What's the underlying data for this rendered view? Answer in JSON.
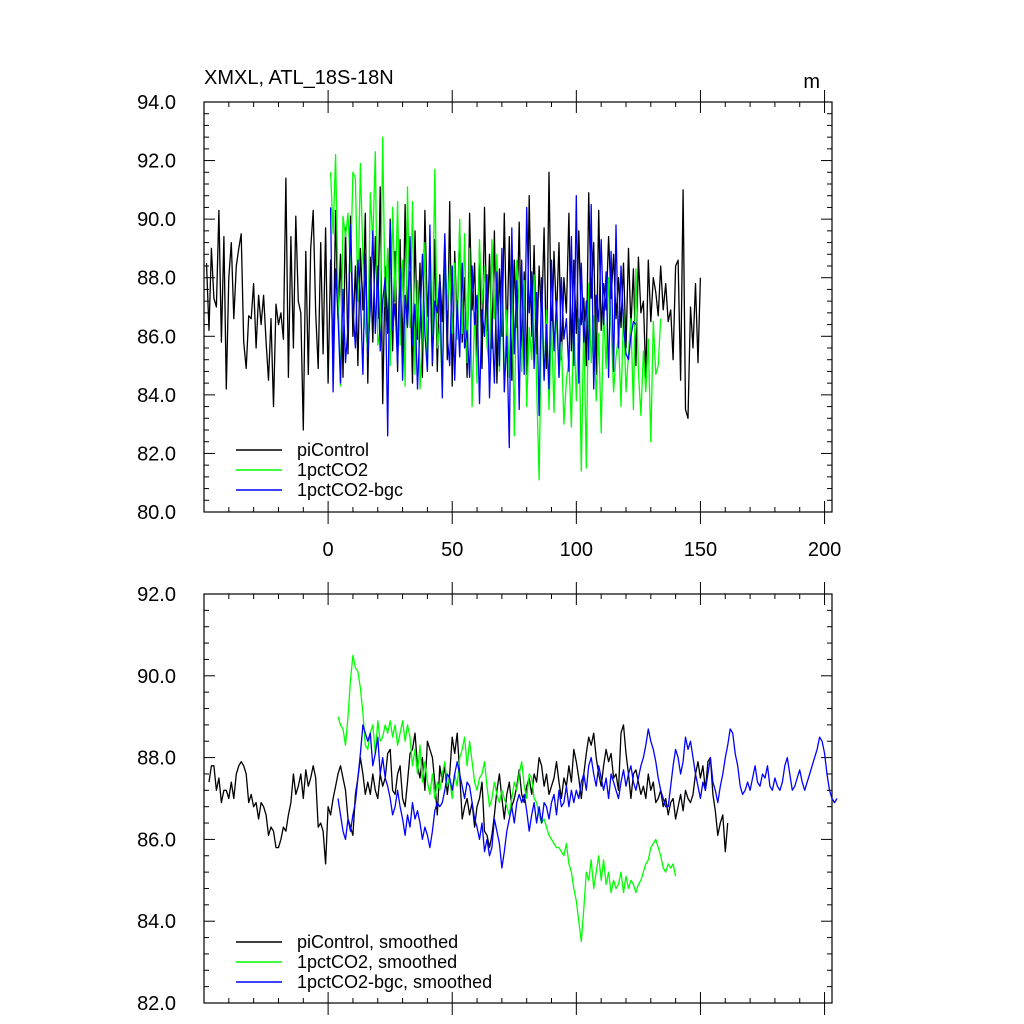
{
  "chart_data": [
    {
      "type": "line",
      "title_left": "XMXL, ATL_18S-18N",
      "title_right": "m",
      "xlim": [
        -50,
        203
      ],
      "ylim": [
        80,
        94
      ],
      "yticks": [
        80.0,
        82.0,
        84.0,
        86.0,
        88.0,
        90.0,
        92.0,
        94.0
      ],
      "xticks": [
        0,
        50,
        100,
        150,
        200
      ],
      "show_x_tick_labels": true,
      "legend_position": "lower-left",
      "series": [
        {
          "name": "piControl",
          "color": "#000000",
          "x_start": -49,
          "values": [
            88.5,
            86.2,
            89.0,
            87.3,
            87.0,
            90.3,
            85.8,
            89.4,
            84.2,
            88.0,
            89.2,
            86.6,
            88.4,
            89.0,
            89.5,
            85.8,
            84.9,
            86.7,
            86.6,
            87.8,
            85.6,
            87.4,
            86.4,
            87.4,
            85.8,
            84.5,
            86.6,
            83.6,
            87.1,
            86.4,
            86.8,
            85.9,
            91.4,
            84.6,
            89.4,
            85.6,
            90.1,
            87.2,
            86.8,
            82.8,
            88.9,
            84.7,
            89.0,
            90.3,
            86.8,
            84.9,
            89.2,
            85.4,
            89.7,
            84.4,
            88.6,
            85.1,
            90.3,
            86.6,
            88.8,
            84.6,
            89.7,
            85.4,
            90.1,
            86.0,
            88.4,
            85.0,
            89.0,
            86.9,
            90.2,
            84.4,
            88.7,
            85.8,
            89.4,
            86.6,
            91.1,
            83.7,
            88.4,
            86.1,
            90.0,
            85.5,
            88.9,
            84.8,
            89.3,
            85.3,
            90.5,
            86.4,
            88.2,
            84.4,
            89.6,
            85.9,
            88.5,
            84.6,
            90.3,
            86.7,
            88.4,
            85.0,
            89.3,
            84.8,
            88.1,
            86.5,
            89.4,
            85.2,
            90.6,
            84.3,
            88.9,
            86.4,
            89.7,
            85.8,
            88.0,
            84.6,
            90.2,
            86.9,
            88.5,
            85.1,
            89.0,
            84.9,
            90.4,
            86.2,
            88.8,
            85.6,
            89.6,
            84.4,
            88.3,
            86.0,
            90.2,
            85.7,
            89.4,
            84.5,
            88.6,
            86.3,
            89.9,
            85.3,
            88.2,
            84.7,
            90.8,
            86.0,
            89.1,
            85.4,
            88.4,
            86.5,
            89.7,
            84.9,
            91.6,
            85.8,
            88.9,
            86.6,
            89.2,
            85.2,
            88.0,
            86.8,
            90.2,
            85.5,
            88.6,
            86.1,
            89.6,
            86.4,
            87.3,
            85.0,
            90.9,
            87.3,
            89.2,
            84.7,
            90.3,
            86.2,
            87.8,
            86.9,
            89.4,
            87.3,
            88.8,
            86.6,
            88.0,
            86.3,
            88.5,
            85.6,
            89.0,
            86.3,
            88.3,
            85.0,
            88.7,
            86.8,
            87.2,
            84.6,
            88.6,
            86.5,
            88.0,
            87.5,
            86.7,
            88.4,
            86.9,
            87.8,
            86.5,
            86.9,
            85.2,
            88.4,
            88.6,
            84.5,
            91.0,
            83.5,
            83.2,
            87.0,
            85.6,
            87.8,
            85.1,
            88.0
          ]
        },
        {
          "name": "1pctCO2",
          "color": "#00ff00",
          "x_start": 1,
          "values": [
            91.6,
            89.5,
            92.2,
            87.6,
            84.3,
            90.1,
            89.4,
            90.2,
            88.2,
            91.6,
            91.4,
            87.2,
            91.9,
            88.7,
            86.3,
            85.5,
            90.9,
            89.2,
            92.3,
            85.7,
            86.2,
            92.8,
            87.0,
            89.0,
            85.0,
            90.4,
            87.2,
            90.6,
            85.7,
            88.6,
            84.3,
            91.1,
            86.3,
            90.6,
            84.7,
            87.9,
            84.2,
            86.2,
            89.2,
            84.9,
            88.4,
            86.0,
            91.7,
            85.6,
            86.4,
            84.2,
            89.0,
            86.9,
            88.4,
            86.1,
            88.5,
            85.9,
            90.0,
            86.1,
            89.5,
            85.1,
            89.0,
            83.6,
            86.8,
            84.4,
            89.3,
            87.1,
            88.4,
            85.7,
            84.9,
            89.3,
            86.6,
            88.8,
            84.8,
            87.7,
            84.1,
            86.9,
            84.6,
            87.9,
            82.6,
            88.6,
            87.0,
            84.8,
            87.9,
            83.6,
            86.3,
            85.2,
            88.1,
            84.4,
            81.1,
            86.8,
            84.5,
            86.9,
            83.5,
            86.5,
            83.4,
            87.2,
            84.6,
            85.8,
            83.0,
            84.5,
            85.2,
            82.9,
            86.8,
            83.8,
            86.6,
            81.4,
            86.5,
            81.5,
            87.8,
            85.1,
            86.7,
            83.8,
            86.1,
            82.7,
            86.9,
            84.9,
            88.0,
            86.4,
            84.1,
            85.3,
            86.0,
            83.6,
            86.9,
            84.1,
            85.4,
            86.6,
            83.5,
            88.3,
            84.8,
            83.3,
            85.5,
            84.1,
            85.9,
            82.4,
            86.5,
            84.7,
            85.0,
            86.6
          ]
        },
        {
          "name": "1pctCO2-bgc",
          "color": "#0000ff",
          "x_start": 1,
          "values": [
            90.4,
            84.1,
            88.3,
            86.7,
            84.4,
            87.6,
            85.1,
            86.3,
            89.8,
            87.0,
            85.6,
            88.6,
            87.4,
            84.7,
            88.8,
            85.3,
            87.0,
            89.6,
            86.1,
            88.4,
            85.5,
            87.2,
            88.0,
            82.6,
            89.9,
            86.2,
            87.1,
            85.0,
            88.3,
            84.5,
            87.4,
            86.3,
            89.4,
            85.7,
            87.1,
            84.2,
            86.4,
            88.8,
            86.1,
            84.8,
            89.8,
            85.1,
            87.2,
            86.8,
            88.0,
            83.9,
            89.5,
            86.0,
            85.0,
            88.4,
            84.5,
            87.2,
            85.3,
            88.5,
            85.6,
            86.2,
            84.6,
            88.4,
            86.4,
            87.4,
            83.7,
            86.9,
            86.0,
            88.1,
            83.9,
            86.6,
            84.4,
            88.2,
            85.0,
            89.0,
            84.1,
            86.0,
            82.2,
            89.7,
            85.4,
            87.9,
            83.5,
            88.6,
            84.7,
            90.4,
            86.8,
            88.2,
            84.9,
            87.5,
            83.3,
            88.0,
            84.5,
            86.4,
            84.2,
            88.6,
            85.5,
            87.2,
            84.6,
            88.0,
            85.9,
            86.6,
            84.8,
            89.4,
            85.0,
            90.8,
            84.4,
            88.5,
            85.8,
            87.2,
            85.2,
            90.5,
            84.2,
            87.4,
            86.5,
            89.3,
            86.4,
            88.2,
            84.6,
            88.9,
            84.8,
            89.8,
            85.6,
            88.4,
            86.4,
            85.4,
            85.2,
            86.0,
            86.5,
            86.4
          ]
        }
      ]
    },
    {
      "type": "line",
      "xlim": [
        -50,
        203
      ],
      "ylim": [
        82,
        92
      ],
      "yticks": [
        82.0,
        84.0,
        86.0,
        88.0,
        90.0,
        92.0
      ],
      "xticks": [
        0,
        50,
        100,
        150,
        200
      ],
      "show_x_tick_labels": false,
      "legend_position": "lower-left",
      "series": [
        {
          "name": "piControl, smoothed",
          "color": "#000000",
          "x_start": -48,
          "values": [
            87.4,
            87.8,
            87.8,
            87.2,
            87.5,
            86.9,
            87.2,
            87.2,
            87.0,
            87.4,
            87.0,
            87.6,
            87.8,
            87.9,
            87.8,
            87.6,
            86.9,
            87.1,
            86.8,
            86.9,
            86.5,
            86.9,
            86.8,
            86.6,
            86.1,
            86.3,
            86.2,
            85.8,
            85.8,
            86.0,
            86.3,
            86.2,
            86.6,
            86.9,
            87.6,
            87.1,
            87.3,
            87.6,
            87.0,
            87.7,
            87.3,
            87.5,
            87.8,
            87.5,
            86.3,
            86.4,
            86.2,
            85.4,
            86.8,
            86.6,
            87.0,
            87.3,
            87.6,
            87.8,
            87.5,
            87.2,
            86.5,
            86.3,
            86.1,
            87.1,
            87.5,
            88.0,
            87.6,
            87.1,
            87.4,
            87.1,
            87.6,
            87.2,
            87.0,
            87.6,
            87.3,
            87.5,
            88.1,
            88.2,
            87.2,
            87.1,
            87.6,
            87.8,
            87.0,
            86.8,
            87.4,
            88.1,
            88.2,
            88.6,
            87.8,
            87.5,
            88.0,
            87.2,
            88.4,
            88.2,
            88.0,
            87.4,
            86.6,
            87.8,
            87.4,
            87.8,
            87.1,
            87.6,
            88.5,
            88.1,
            88.6,
            87.6,
            86.5,
            86.8,
            87.0,
            86.6,
            86.9,
            86.3,
            86.8,
            87.0,
            87.4,
            86.2,
            86.1,
            85.8,
            86.1,
            86.6,
            87.2,
            87.6,
            87.0,
            86.5,
            87.1,
            87.4,
            86.8,
            87.0,
            87.3,
            87.7,
            87.1,
            86.9,
            87.3,
            87.5,
            87.1,
            87.6,
            87.4,
            88.0,
            87.8,
            87.3,
            87.6,
            87.1,
            87.3,
            87.5,
            87.9,
            87.4,
            87.0,
            87.5,
            87.3,
            87.8,
            87.4,
            88.2,
            87.9,
            87.5,
            87.0,
            87.6,
            88.1,
            88.5,
            88.3,
            88.6,
            88.0,
            87.6,
            87.3,
            87.8,
            88.2,
            87.9,
            88.1,
            87.5,
            87.6,
            87.2,
            88.6,
            88.8,
            88.1,
            87.6,
            87.0,
            87.6,
            87.7,
            87.4,
            87.1,
            87.3,
            87.0,
            87.6,
            87.2,
            87.4,
            86.9,
            87.0,
            87.2,
            86.8,
            87.0,
            86.6,
            86.9,
            87.0,
            86.5,
            86.8,
            87.1,
            86.7,
            87.2,
            87.0,
            86.9,
            87.1,
            87.6,
            87.9,
            87.5,
            87.8,
            87.2,
            87.9,
            88.0,
            87.1,
            86.7,
            86.1,
            86.4,
            86.6,
            85.7,
            86.4
          ]
        },
        {
          "name": "1pctCO2, smoothed",
          "color": "#00ff00",
          "x_start": 4,
          "values": [
            89.0,
            88.8,
            88.7,
            88.3,
            89.0,
            89.9,
            90.5,
            90.2,
            90.1,
            89.7,
            89.1,
            88.3,
            88.2,
            88.6,
            88.8,
            88.1,
            88.9,
            88.4,
            88.5,
            88.8,
            88.6,
            88.9,
            88.5,
            88.8,
            88.3,
            88.6,
            88.9,
            88.4,
            88.8,
            88.5,
            87.8,
            88.2,
            87.6,
            88.3,
            87.4,
            87.9,
            87.4,
            87.1,
            87.6,
            87.0,
            87.4,
            87.2,
            87.6,
            87.9,
            87.3,
            87.5,
            87.0,
            87.6,
            87.3,
            88.0,
            88.2,
            88.5,
            87.8,
            88.4,
            87.9,
            87.4,
            87.2,
            87.5,
            87.6,
            87.9,
            87.3,
            86.8,
            87.0,
            87.4,
            87.1,
            86.9,
            87.2,
            87.0,
            86.8,
            86.6,
            87.0,
            87.4,
            87.2,
            87.6,
            87.9,
            87.3,
            87.0,
            87.6,
            87.5,
            87.0,
            86.9,
            86.6,
            86.4,
            86.5,
            86.3,
            86.1,
            86.0,
            85.9,
            85.8,
            85.8,
            85.7,
            85.6,
            85.9,
            85.4,
            85.2,
            84.8,
            84.5,
            84.0,
            83.5,
            84.3,
            85.2,
            85.0,
            85.5,
            84.8,
            85.2,
            85.6,
            85.0,
            85.5,
            84.9,
            85.2,
            84.7,
            85.0,
            84.8,
            84.9,
            85.2,
            84.7,
            85.1,
            84.8,
            85.0,
            84.9,
            84.7,
            84.9,
            85.0,
            85.2,
            85.4,
            85.5,
            85.8,
            85.9,
            86.0,
            85.8,
            85.6,
            85.3,
            85.2,
            85.4,
            85.3,
            85.4,
            85.1
          ]
        },
        {
          "name": "1pctCO2-bgc, smoothed",
          "color": "#0000ff",
          "x_start": 4,
          "values": [
            87.0,
            86.6,
            86.2,
            86.0,
            86.5,
            86.2,
            86.6,
            86.9,
            87.5,
            88.1,
            88.8,
            88.6,
            88.4,
            88.6,
            87.8,
            88.1,
            88.5,
            87.6,
            88.0,
            87.5,
            87.3,
            87.0,
            86.6,
            86.8,
            87.2,
            86.8,
            86.5,
            86.1,
            86.6,
            86.3,
            86.9,
            86.5,
            86.7,
            86.4,
            86.0,
            86.3,
            86.1,
            85.8,
            86.2,
            86.7,
            86.9,
            86.8,
            86.9,
            87.2,
            87.6,
            87.5,
            87.2,
            87.6,
            87.9,
            87.6,
            87.3,
            87.0,
            87.4,
            87.3,
            86.9,
            86.5,
            86.3,
            86.0,
            86.4,
            85.7,
            86.0,
            85.6,
            85.8,
            86.5,
            86.2,
            85.9,
            85.3,
            85.7,
            86.2,
            86.5,
            86.8,
            86.4,
            86.9,
            87.1,
            86.9,
            87.1,
            86.7,
            86.2,
            86.6,
            86.9,
            86.4,
            86.8,
            86.4,
            86.9,
            86.8,
            86.5,
            86.9,
            87.1,
            86.6,
            87.2,
            86.8,
            86.9,
            87.3,
            86.8,
            87.2,
            86.9,
            87.2,
            87.0,
            87.4,
            87.6,
            87.2,
            87.8,
            88.0,
            87.6,
            87.3,
            87.8,
            87.5,
            87.2,
            87.5,
            87.0,
            87.6,
            87.4,
            87.2,
            87.0,
            87.4,
            87.7,
            87.3,
            87.6,
            87.8,
            87.4,
            87.2,
            87.5,
            87.8,
            88.0,
            88.3,
            88.7,
            88.4,
            88.2,
            87.9,
            87.5,
            87.2,
            87.0,
            86.8,
            86.8,
            87.3,
            87.8,
            88.2,
            88.0,
            87.6,
            87.9,
            88.5,
            88.2,
            88.4,
            88.0,
            87.6,
            87.3,
            87.0,
            87.4,
            87.2,
            87.6,
            88.0,
            87.4,
            87.2,
            86.9,
            87.3,
            87.6,
            88.0,
            88.3,
            88.7,
            88.6,
            88.1,
            87.8,
            87.3,
            87.1,
            87.2,
            87.4,
            87.2,
            87.5,
            87.8,
            87.4,
            87.3,
            87.6,
            87.5,
            87.8,
            87.3,
            87.2,
            87.5,
            87.3,
            87.2,
            87.4,
            87.8,
            88.0,
            87.6,
            87.2,
            87.3,
            87.5,
            87.7,
            87.4,
            87.2,
            87.4,
            87.6,
            87.8,
            88.0,
            88.2,
            88.5,
            88.4,
            88.1,
            87.6,
            87.2,
            87.0,
            86.9,
            87.0
          ]
        }
      ]
    }
  ]
}
